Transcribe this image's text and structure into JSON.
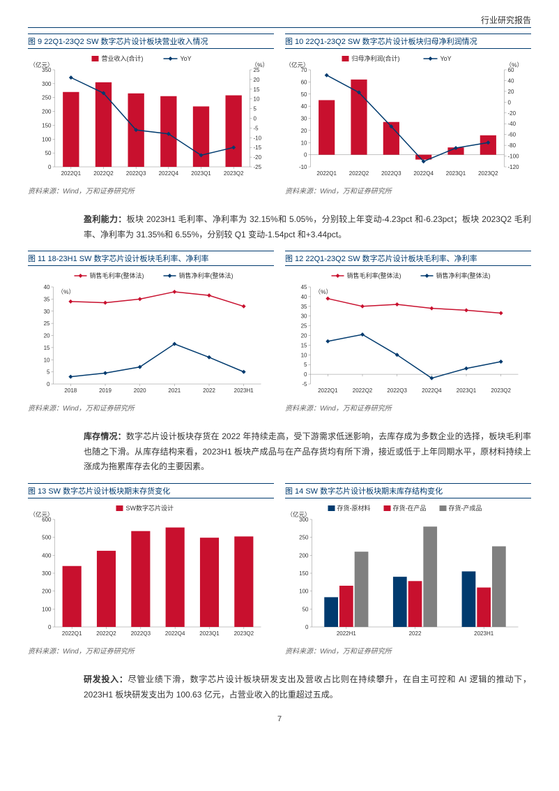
{
  "header": "行业研究报告",
  "page_num": "7",
  "source": "资料来源：Wind，万和证券研究所",
  "para1_bold": "盈利能力：",
  "para1": "板块 2023H1 毛利率、净利率为 32.15%和 5.05%，分别较上年变动-4.23pct 和-6.23pct；板块 2023Q2 毛利率、净利率为 31.35%和 6.55%，分别较 Q1 变动-1.54pct 和+3.44pct。",
  "para2_bold": "库存情况：",
  "para2": "数字芯片设计板块存货在 2022 年持续走高，受下游需求低迷影响，去库存成为多数企业的选择，板块毛利率也随之下滑。从库存结构来看，2023H1 板块产成品与在产品存货均有所下滑，接近或低于上年同期水平，原材料持续上涨成为拖累库存去化的主要因素。",
  "para3_bold": "研发投入：",
  "para3": "尽管业绩下滑，数字芯片设计板块研发支出及营收占比则在持续攀升，在自主可控和 AI 逻辑的推动下，2023H1 板块研发支出为 100.63 亿元，占营业收入的比重超过五成。",
  "fig9": {
    "title": "图 9  22Q1-23Q2 SW 数字芯片设计板块营业收入情况",
    "legend1": "营业收入(合计)",
    "legend2": "YoY",
    "unit_left": "（亿元）",
    "unit_right": "（%）",
    "categories": [
      "2022Q1",
      "2022Q2",
      "2022Q3",
      "2022Q4",
      "2023Q1",
      "2023Q2"
    ],
    "bars": [
      270,
      305,
      265,
      255,
      218,
      258
    ],
    "line": [
      21,
      13,
      -6,
      -8,
      -19,
      -15
    ],
    "y1_min": 0,
    "y1_max": 350,
    "y1_step": 50,
    "y2_min": -25,
    "y2_max": 25,
    "y2_step": 5,
    "bar_color": "#c8102e",
    "line_color": "#003a6e"
  },
  "fig10": {
    "title": "图 10  22Q1-23Q2 SW 数字芯片设计板块归母净利润情况",
    "legend1": "归母净利润(合计)",
    "legend2": "YoY",
    "unit_left": "（亿元）",
    "unit_right": "（%）",
    "categories": [
      "2022Q1",
      "2022Q2",
      "2022Q3",
      "2022Q4",
      "2023Q1",
      "2023Q2"
    ],
    "bars": [
      45,
      62,
      27,
      -4,
      6,
      16
    ],
    "line": [
      50,
      18,
      -45,
      -110,
      -85,
      -75
    ],
    "y1_min": -10,
    "y1_max": 70,
    "y1_step": 10,
    "y2_min": -120,
    "y2_max": 60,
    "y2_step": 20,
    "bar_color": "#c8102e",
    "line_color": "#003a6e"
  },
  "fig11": {
    "title": "图 11  18-23H1 SW 数字芯片设计板块毛利率、净利率",
    "legend1": "销售毛利率(整体法)",
    "legend2": "销售净利率(整体法)",
    "unit_left": "（%）",
    "categories": [
      "2018",
      "2019",
      "2020",
      "2021",
      "2022",
      "2023H1"
    ],
    "line1": [
      34,
      33.5,
      35,
      38,
      36.5,
      32
    ],
    "line2": [
      3,
      4.5,
      7,
      16.5,
      11,
      5
    ],
    "y_min": 0,
    "y_max": 40,
    "y_step": 5,
    "c1": "#c8102e",
    "c2": "#003a6e"
  },
  "fig12": {
    "title": "图 12  22Q1-23Q2 SW 数字芯片设计板块毛利率、净利率",
    "legend1": "销售毛利率(整体法)",
    "legend2": "销售净利率(整体法)",
    "unit_left": "（%）",
    "categories": [
      "2022Q1",
      "2022Q2",
      "2022Q3",
      "2022Q4",
      "2023Q1",
      "2023Q2"
    ],
    "line1": [
      39,
      35,
      36,
      34,
      33,
      31.5
    ],
    "line2": [
      17,
      20.5,
      10,
      -2,
      3,
      6.5
    ],
    "y_min": -5,
    "y_max": 45,
    "y_step": 5,
    "c1": "#c8102e",
    "c2": "#003a6e"
  },
  "fig13": {
    "title": "图 13  SW 数字芯片设计板块期末存货变化",
    "legend1": "SW数字芯片设计",
    "unit_left": "（亿元）",
    "categories": [
      "2022Q1",
      "2022Q2",
      "2022Q3",
      "2022Q4",
      "2023Q1",
      "2023Q2"
    ],
    "bars": [
      340,
      425,
      535,
      555,
      498,
      505
    ],
    "y_min": 0,
    "y_max": 600,
    "y_step": 100,
    "bar_color": "#c8102e"
  },
  "fig14": {
    "title": "图 14  SW 数字芯片设计板块期末库存结构变化",
    "legend1": "存货-原材料",
    "legend2": "存货-在产品",
    "legend3": "存货-产成品",
    "unit_left": "（亿元）",
    "categories": [
      "2022H1",
      "2022",
      "2023H1"
    ],
    "s1": [
      83,
      140,
      155
    ],
    "s2": [
      115,
      128,
      110
    ],
    "s3": [
      210,
      280,
      225
    ],
    "y_min": 0,
    "y_max": 300,
    "y_step": 50,
    "c1": "#003a6e",
    "c2": "#c8102e",
    "c3": "#808080"
  }
}
